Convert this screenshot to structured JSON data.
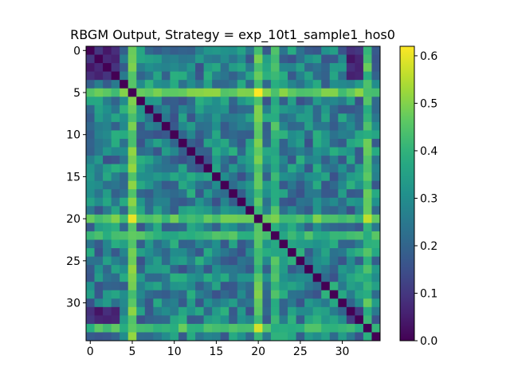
{
  "chart_data": {
    "type": "heatmap",
    "title": "RBGM Output,  Strategy = exp_10t1_sample1_hos0",
    "size": 35,
    "xticks": [
      0,
      5,
      10,
      15,
      20,
      25,
      30
    ],
    "yticks": [
      0,
      5,
      10,
      15,
      20,
      25,
      30
    ],
    "colorbar": {
      "range": [
        0.0,
        0.62
      ],
      "ticks": [
        "0.0",
        "0.1",
        "0.2",
        "0.3",
        "0.4",
        "0.5",
        "0.6"
      ],
      "colormap": "viridis"
    },
    "structure": {
      "diagonal_value": 0.0,
      "bright_bands": [
        {
          "index": 5,
          "value": 0.48
        },
        {
          "index": 20,
          "value": 0.46
        },
        {
          "index": 22,
          "value": 0.42
        },
        {
          "index": 33,
          "value": 0.44
        }
      ],
      "peak_cells": [
        {
          "row": 5,
          "col": 20,
          "value": 0.62
        },
        {
          "row": 20,
          "col": 5,
          "value": 0.6
        },
        {
          "row": 33,
          "col": 20,
          "value": 0.58
        },
        {
          "row": 20,
          "col": 33,
          "value": 0.56
        }
      ],
      "dark_cluster_indices": [
        0,
        1,
        2,
        3,
        31,
        32,
        33
      ],
      "dark_cluster_value": 0.08,
      "background_range": [
        0.15,
        0.4
      ]
    }
  }
}
